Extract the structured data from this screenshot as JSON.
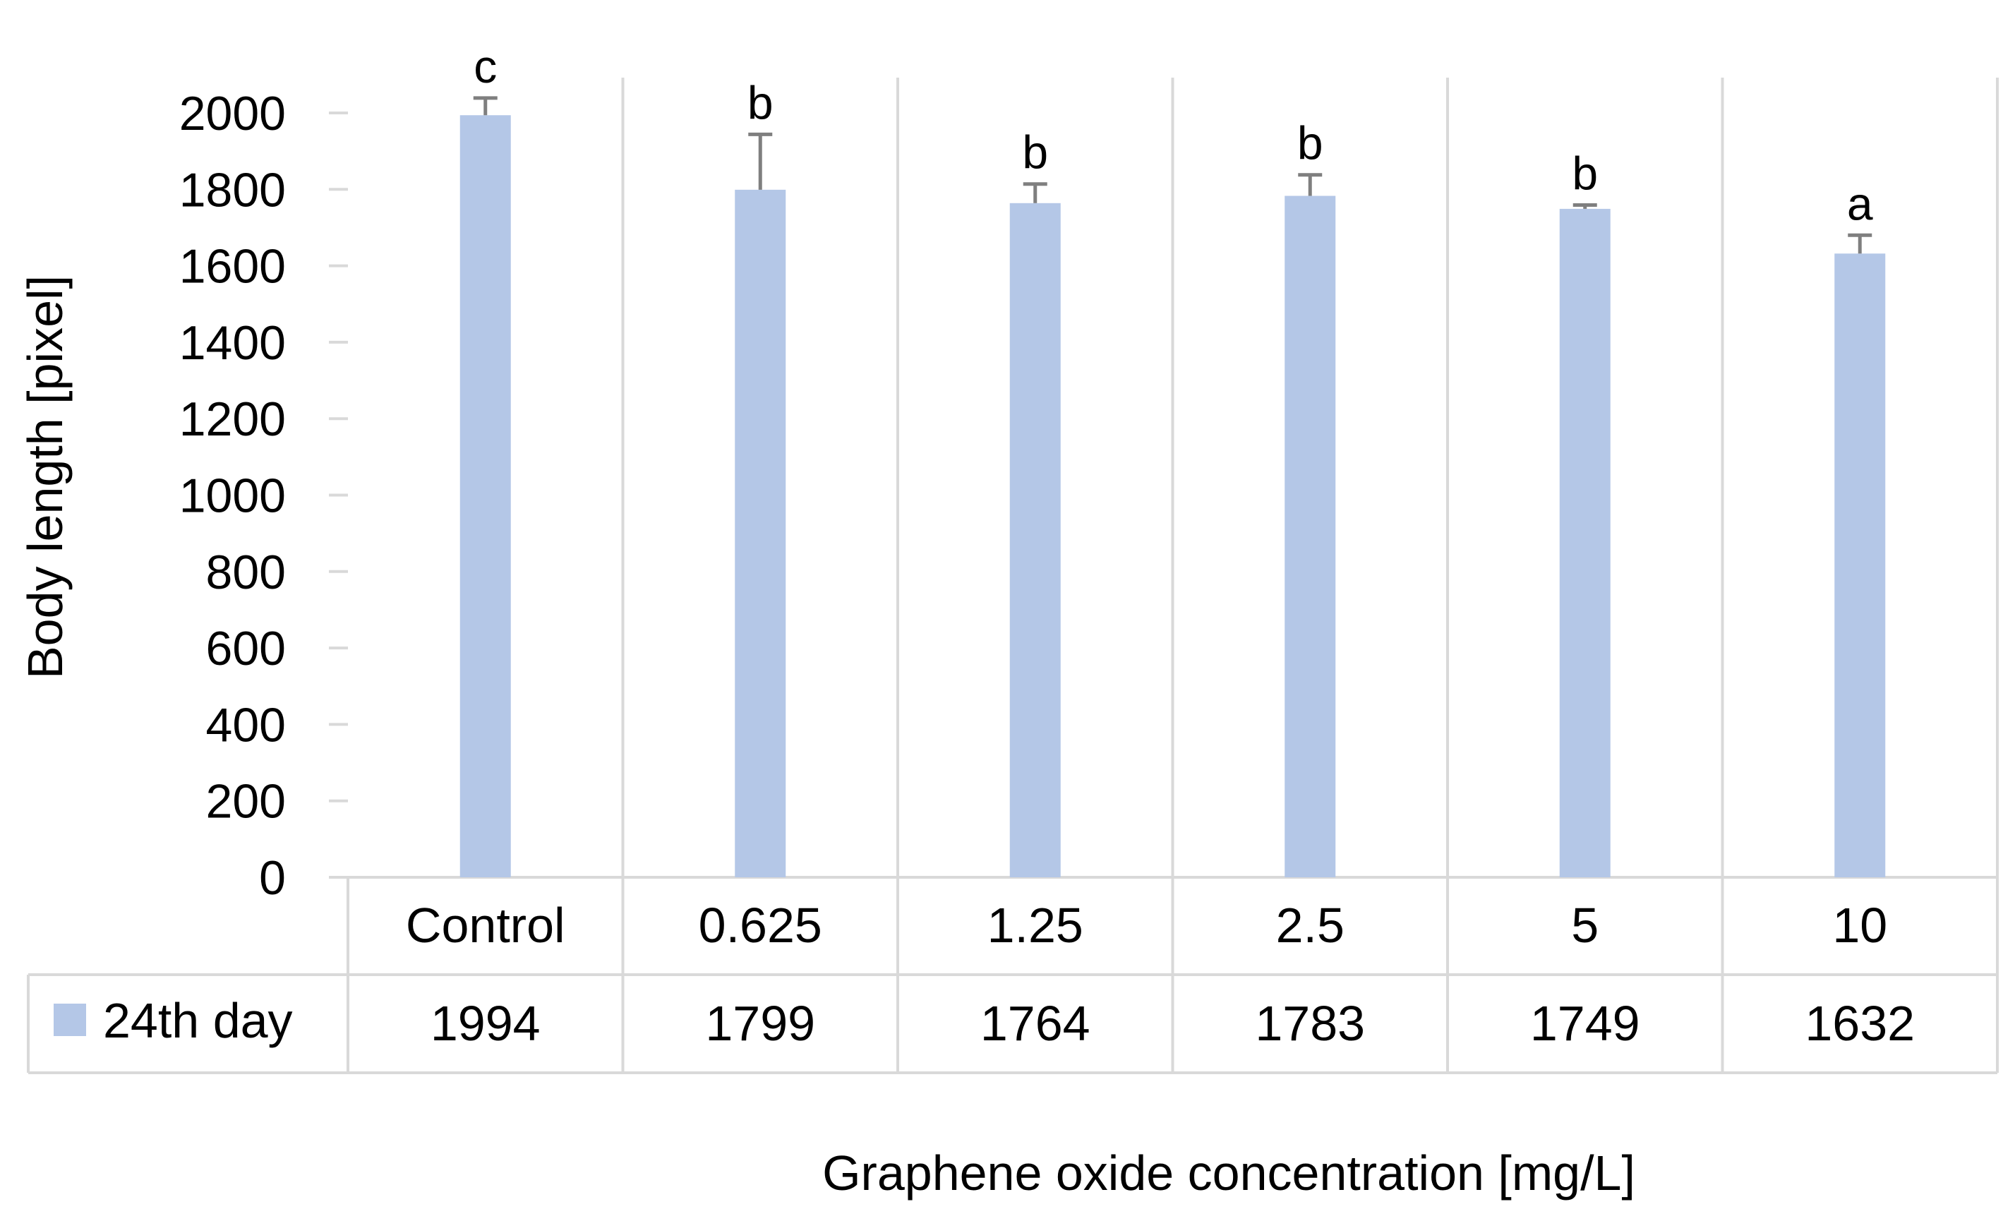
{
  "chart_data": {
    "type": "bar",
    "categories": [
      "Control",
      "0.625",
      "1.25",
      "2.5",
      "5",
      "10"
    ],
    "series": [
      {
        "name": "24th day",
        "color": "#b4c7e7",
        "values": [
          1994,
          1799,
          1764,
          1783,
          1749,
          1632
        ],
        "error_plus": [
          45,
          145,
          50,
          55,
          10,
          48
        ]
      }
    ],
    "significance_letters": [
      "c",
      "b",
      "b",
      "b",
      "b",
      "a"
    ],
    "xlabel": "Graphene oxide concentration [mg/L]",
    "ylabel": "Body length  [pixel]",
    "ylim": [
      0,
      2000
    ],
    "yticks": [
      0,
      200,
      400,
      600,
      800,
      1000,
      1200,
      1400,
      1600,
      1800,
      2000
    ],
    "grid": "vertical category separators",
    "legend": "data table row",
    "data_table": true,
    "error_bar_color": "#7f7f7f"
  }
}
